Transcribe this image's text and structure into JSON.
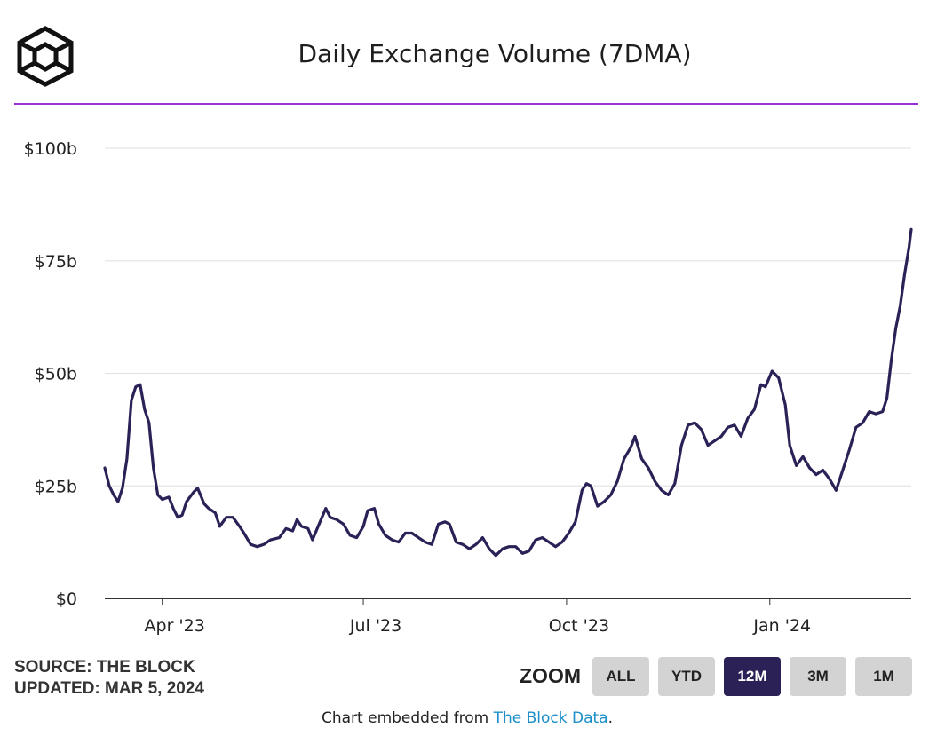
{
  "colors": {
    "line": "#2b2157",
    "accent_rule": "#9b30d9",
    "grid": "#e5e5e5",
    "active_button": "#2b2157",
    "button": "#d3d3d3",
    "link": "#1a8fc9"
  },
  "logo_icon": "the-block-cube-logo",
  "footer": {
    "source": "SOURCE: THE BLOCK",
    "updated": "UPDATED: MAR 5, 2024"
  },
  "zoom": {
    "label": "ZOOM",
    "buttons": [
      "ALL",
      "YTD",
      "12M",
      "3M",
      "1M"
    ],
    "selected": "12M"
  },
  "embed": {
    "prefix": "Chart embedded from ",
    "link_text": "The Block Data",
    "suffix": "."
  },
  "chart_data": {
    "type": "line",
    "title": "Daily Exchange Volume (7DMA)",
    "xlabel": "",
    "ylabel": "",
    "y_tick_labels": [
      "$0",
      "$25b",
      "$50b",
      "$75b",
      "$100b"
    ],
    "y_ticks": [
      0,
      25,
      50,
      75,
      100
    ],
    "ylim": [
      0,
      100
    ],
    "x_tick_labels": [
      "Apr '23",
      "Jul '23",
      "Oct '23",
      "Jan '24"
    ],
    "x_ticks": [
      "2023-04-01",
      "2023-07-01",
      "2023-10-01",
      "2024-01-01"
    ],
    "x_range": [
      "2023-03-06",
      "2024-03-05"
    ],
    "grid": "horizontal",
    "legend": "none",
    "series": [
      {
        "unit": "$b",
        "points": [
          [
            "2023-03-06",
            29.0
          ],
          [
            "2023-03-08",
            25.0
          ],
          [
            "2023-03-10",
            23.0
          ],
          [
            "2023-03-12",
            21.5
          ],
          [
            "2023-03-14",
            24.5
          ],
          [
            "2023-03-16",
            31.0
          ],
          [
            "2023-03-18",
            44.0
          ],
          [
            "2023-03-20",
            47.0
          ],
          [
            "2023-03-22",
            47.5
          ],
          [
            "2023-03-24",
            42.0
          ],
          [
            "2023-03-26",
            39.0
          ],
          [
            "2023-03-28",
            29.0
          ],
          [
            "2023-03-30",
            23.0
          ],
          [
            "2023-04-01",
            22.0
          ],
          [
            "2023-04-04",
            22.5
          ],
          [
            "2023-04-06",
            20.0
          ],
          [
            "2023-04-08",
            18.0
          ],
          [
            "2023-04-10",
            18.5
          ],
          [
            "2023-04-12",
            21.5
          ],
          [
            "2023-04-15",
            23.5
          ],
          [
            "2023-04-17",
            24.5
          ],
          [
            "2023-04-20",
            21.0
          ],
          [
            "2023-04-22",
            20.0
          ],
          [
            "2023-04-25",
            19.0
          ],
          [
            "2023-04-27",
            16.0
          ],
          [
            "2023-04-30",
            18.0
          ],
          [
            "2023-05-03",
            18.0
          ],
          [
            "2023-05-06",
            16.0
          ],
          [
            "2023-05-08",
            14.5
          ],
          [
            "2023-05-11",
            12.0
          ],
          [
            "2023-05-14",
            11.5
          ],
          [
            "2023-05-17",
            12.0
          ],
          [
            "2023-05-20",
            13.0
          ],
          [
            "2023-05-24",
            13.5
          ],
          [
            "2023-05-27",
            15.5
          ],
          [
            "2023-05-30",
            15.0
          ],
          [
            "2023-06-01",
            17.5
          ],
          [
            "2023-06-03",
            16.0
          ],
          [
            "2023-06-06",
            15.5
          ],
          [
            "2023-06-08",
            13.0
          ],
          [
            "2023-06-11",
            16.5
          ],
          [
            "2023-06-14",
            20.0
          ],
          [
            "2023-06-16",
            18.0
          ],
          [
            "2023-06-19",
            17.5
          ],
          [
            "2023-06-22",
            16.5
          ],
          [
            "2023-06-25",
            14.0
          ],
          [
            "2023-06-28",
            13.5
          ],
          [
            "2023-07-01",
            16.0
          ],
          [
            "2023-07-03",
            19.5
          ],
          [
            "2023-07-06",
            20.0
          ],
          [
            "2023-07-08",
            16.5
          ],
          [
            "2023-07-11",
            14.0
          ],
          [
            "2023-07-14",
            13.0
          ],
          [
            "2023-07-17",
            12.5
          ],
          [
            "2023-07-20",
            14.5
          ],
          [
            "2023-07-23",
            14.5
          ],
          [
            "2023-07-26",
            13.5
          ],
          [
            "2023-07-29",
            12.5
          ],
          [
            "2023-08-01",
            12.0
          ],
          [
            "2023-08-04",
            16.5
          ],
          [
            "2023-08-07",
            17.0
          ],
          [
            "2023-08-09",
            16.5
          ],
          [
            "2023-08-12",
            12.5
          ],
          [
            "2023-08-15",
            12.0
          ],
          [
            "2023-08-18",
            11.0
          ],
          [
            "2023-08-21",
            12.0
          ],
          [
            "2023-08-24",
            13.5
          ],
          [
            "2023-08-27",
            11.0
          ],
          [
            "2023-08-30",
            9.5
          ],
          [
            "2023-09-02",
            11.0
          ],
          [
            "2023-09-05",
            11.5
          ],
          [
            "2023-09-08",
            11.5
          ],
          [
            "2023-09-11",
            10.0
          ],
          [
            "2023-09-14",
            10.5
          ],
          [
            "2023-09-17",
            13.0
          ],
          [
            "2023-09-20",
            13.5
          ],
          [
            "2023-09-23",
            12.5
          ],
          [
            "2023-09-26",
            11.5
          ],
          [
            "2023-09-29",
            12.5
          ],
          [
            "2023-10-02",
            14.5
          ],
          [
            "2023-10-05",
            17.0
          ],
          [
            "2023-10-08",
            24.0
          ],
          [
            "2023-10-10",
            25.5
          ],
          [
            "2023-10-12",
            25.0
          ],
          [
            "2023-10-15",
            20.5
          ],
          [
            "2023-10-18",
            21.5
          ],
          [
            "2023-10-21",
            23.0
          ],
          [
            "2023-10-24",
            26.0
          ],
          [
            "2023-10-27",
            31.0
          ],
          [
            "2023-10-30",
            33.5
          ],
          [
            "2023-11-01",
            36.0
          ],
          [
            "2023-11-04",
            31.0
          ],
          [
            "2023-11-07",
            29.0
          ],
          [
            "2023-11-10",
            26.0
          ],
          [
            "2023-11-13",
            24.0
          ],
          [
            "2023-11-16",
            23.0
          ],
          [
            "2023-11-19",
            25.5
          ],
          [
            "2023-11-22",
            34.0
          ],
          [
            "2023-11-25",
            38.5
          ],
          [
            "2023-11-28",
            39.0
          ],
          [
            "2023-12-01",
            37.5
          ],
          [
            "2023-12-04",
            34.0
          ],
          [
            "2023-12-07",
            35.0
          ],
          [
            "2023-12-10",
            36.0
          ],
          [
            "2023-12-13",
            38.0
          ],
          [
            "2023-12-16",
            38.5
          ],
          [
            "2023-12-19",
            36.0
          ],
          [
            "2023-12-22",
            40.0
          ],
          [
            "2023-12-25",
            42.0
          ],
          [
            "2023-12-28",
            47.5
          ],
          [
            "2023-12-30",
            47.0
          ],
          [
            "2024-01-02",
            50.5
          ],
          [
            "2024-01-05",
            49.0
          ],
          [
            "2024-01-08",
            43.0
          ],
          [
            "2024-01-10",
            34.0
          ],
          [
            "2024-01-13",
            29.5
          ],
          [
            "2024-01-16",
            31.5
          ],
          [
            "2024-01-19",
            29.0
          ],
          [
            "2024-01-22",
            27.5
          ],
          [
            "2024-01-25",
            28.5
          ],
          [
            "2024-01-28",
            26.5
          ],
          [
            "2024-01-31",
            24.0
          ],
          [
            "2024-02-03",
            28.5
          ],
          [
            "2024-02-06",
            33.0
          ],
          [
            "2024-02-09",
            38.0
          ],
          [
            "2024-02-12",
            39.0
          ],
          [
            "2024-02-15",
            41.5
          ],
          [
            "2024-02-18",
            41.0
          ],
          [
            "2024-02-21",
            41.5
          ],
          [
            "2024-02-23",
            44.5
          ],
          [
            "2024-02-25",
            53.0
          ],
          [
            "2024-02-27",
            60.0
          ],
          [
            "2024-02-29",
            65.0
          ],
          [
            "2024-03-02",
            72.0
          ],
          [
            "2024-03-04",
            78.0
          ],
          [
            "2024-03-05",
            82.0
          ]
        ]
      }
    ]
  }
}
